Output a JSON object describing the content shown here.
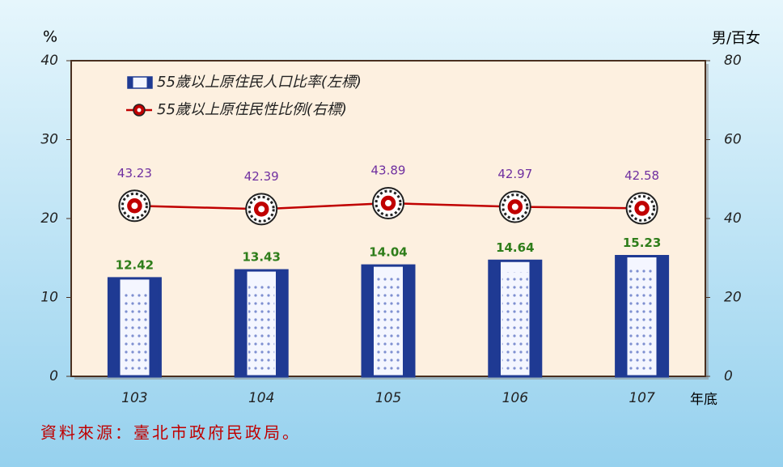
{
  "chart_data": {
    "type": "bar",
    "left_unit": "%",
    "right_unit": "男/百女",
    "x_label": "年底",
    "source": "資料來源：臺北市政府民政局。",
    "categories": [
      "103",
      "104",
      "105",
      "106",
      "107"
    ],
    "series": [
      {
        "name": "55歲以上原住民人口比率(左標)",
        "type": "bar",
        "color": "#1f3a93",
        "label_color": "#2e7d1a",
        "values": [
          12.42,
          13.43,
          14.04,
          14.64,
          15.23
        ]
      },
      {
        "name": "55歲以上原住民性比例(右標)",
        "type": "line",
        "axis": "y2",
        "color": "#c00000",
        "label_color": "#7030a0",
        "values": [
          43.23,
          42.39,
          43.89,
          42.97,
          42.58
        ]
      }
    ],
    "ylim": [
      0,
      40
    ],
    "yticks": [
      0,
      10,
      20,
      30,
      40
    ],
    "y2lim": [
      0,
      80
    ],
    "y2ticks": [
      0,
      20,
      40,
      60,
      80
    ]
  }
}
